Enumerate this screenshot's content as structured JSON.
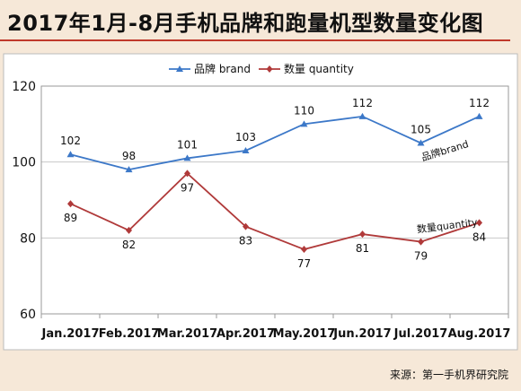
{
  "header": {
    "title": "2017年1月-8月手机品牌和跑量机型数量变化图"
  },
  "footer": {
    "source": "来源：第一手机界研究院"
  },
  "colors": {
    "background": "#f6e8d8",
    "plot_background": "#ffffff",
    "brand_series": "#3c78c8",
    "quantity_series": "#b03a3a",
    "title_rule": "#c0392b"
  },
  "chart_data": {
    "type": "line",
    "title": "",
    "xlabel": "",
    "ylabel": "",
    "categories": [
      "Jan.2017",
      "Feb.2017",
      "Mar.2017",
      "Apr.2017",
      "May.2017",
      "Jun.2017",
      "Jul.2017",
      "Aug.2017"
    ],
    "ylim": [
      60,
      120
    ],
    "yticks": [
      60,
      80,
      100,
      120
    ],
    "grid": true,
    "legend_position": "top",
    "series": [
      {
        "name": "品牌 brand",
        "marker": "triangle",
        "end_label": "品牌brand",
        "values": [
          102,
          98,
          101,
          103,
          110,
          112,
          105,
          112
        ]
      },
      {
        "name": "数量 quantity",
        "marker": "diamond",
        "end_label": "数量quantity",
        "values": [
          89,
          82,
          97,
          83,
          77,
          81,
          79,
          84
        ]
      }
    ]
  }
}
